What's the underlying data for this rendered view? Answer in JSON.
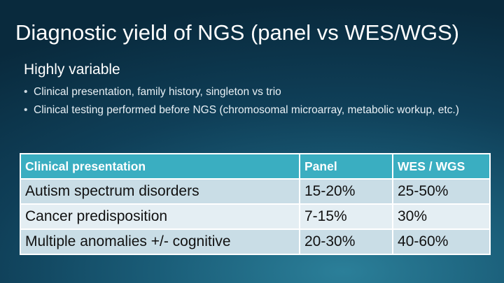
{
  "slide": {
    "title": "Diagnostic yield of NGS (panel vs WES/WGS)",
    "subtitle": "Highly variable",
    "bullets": [
      "Clinical presentation, family history, singleton vs trio",
      "Clinical testing performed before NGS (chromosomal microarray, metabolic workup, etc.)"
    ],
    "bullet_glyph": "•"
  },
  "table": {
    "headers": [
      "Clinical presentation",
      "Panel",
      "WES / WGS"
    ],
    "rows": [
      [
        "Autism spectrum disorders",
        "15-20%",
        "25-50%"
      ],
      [
        "Cancer predisposition",
        "7-15%",
        "30%"
      ],
      [
        "Multiple anomalies +/- cognitive",
        "20-30%",
        "40-60%"
      ]
    ]
  },
  "colors": {
    "header_fill": "#3aaec1",
    "row_fill_dark": "#c9dde6",
    "row_fill_light": "#e4eef3",
    "background_dark": "#092a3d",
    "background_light": "#2b7f99"
  }
}
